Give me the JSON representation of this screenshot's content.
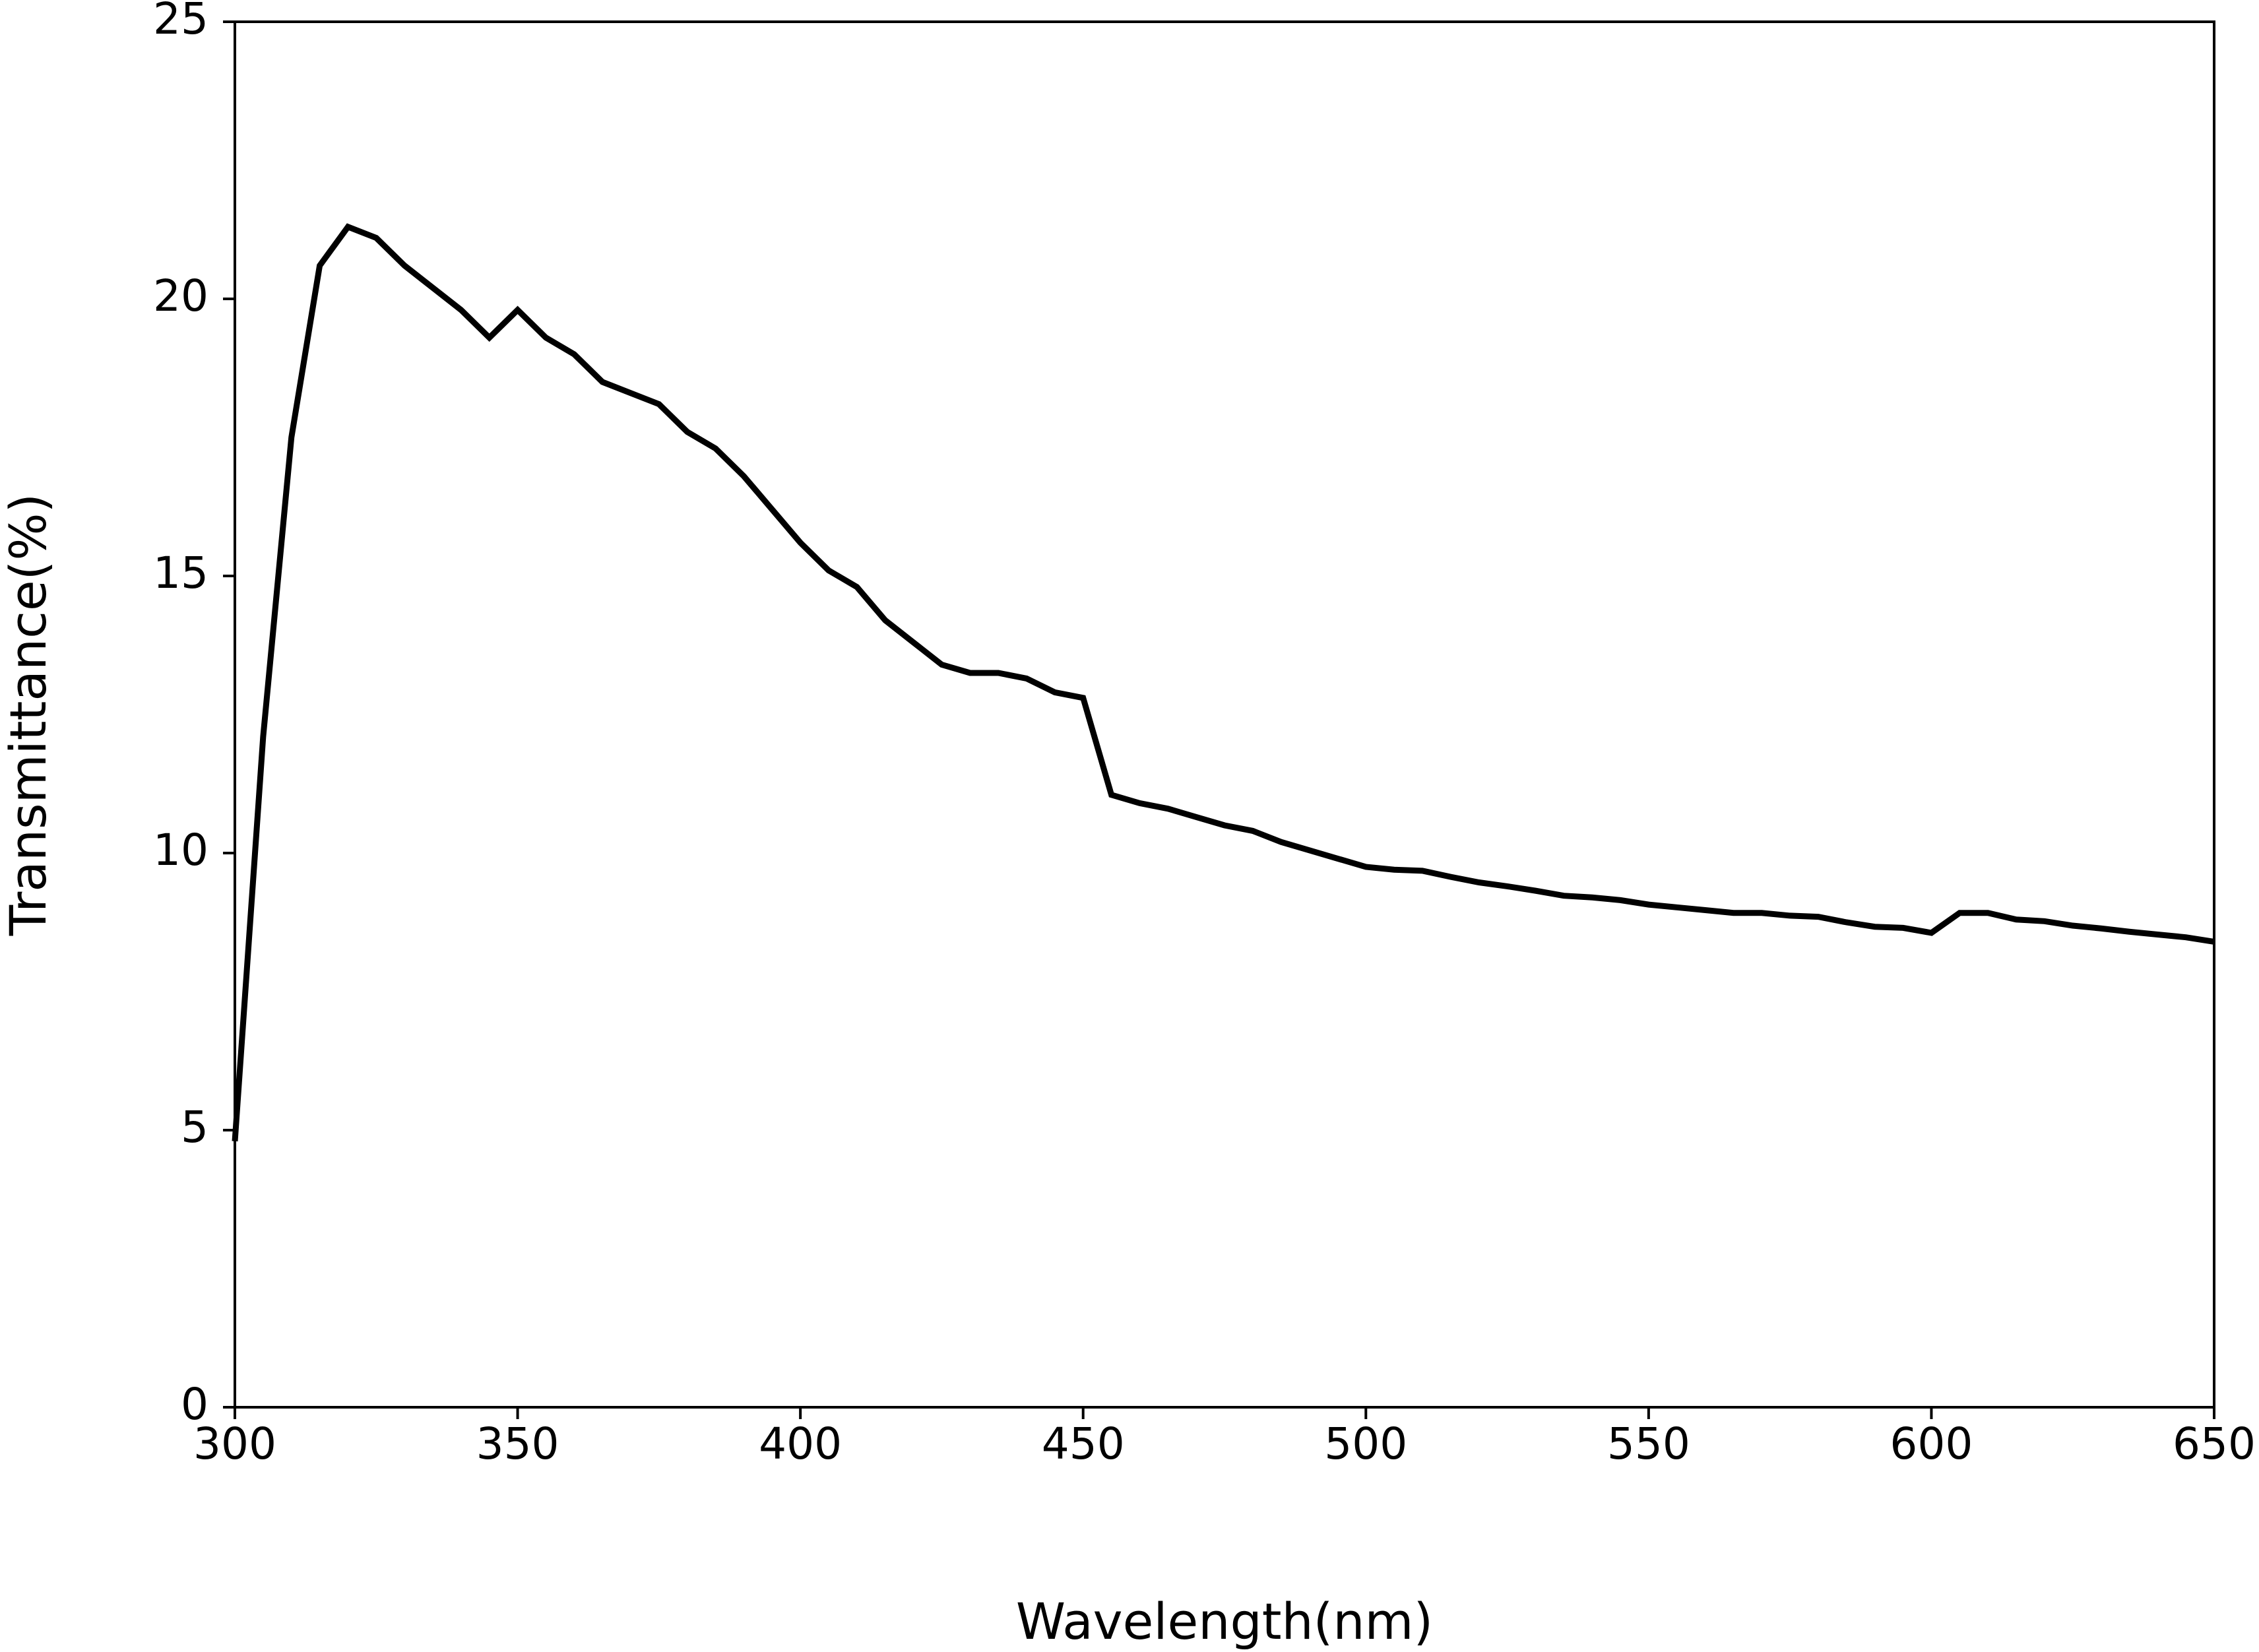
{
  "chart_data": {
    "type": "line",
    "x_label": "Wavelength(nm)",
    "y_label": "Transmittance(%)",
    "x": [
      300,
      305,
      310,
      315,
      320,
      325,
      330,
      335,
      340,
      345,
      350,
      355,
      360,
      365,
      370,
      375,
      380,
      385,
      390,
      395,
      400,
      405,
      410,
      415,
      420,
      425,
      430,
      435,
      440,
      445,
      450,
      455,
      460,
      465,
      470,
      475,
      480,
      485,
      490,
      495,
      500,
      505,
      510,
      515,
      520,
      525,
      530,
      535,
      540,
      545,
      550,
      555,
      560,
      565,
      570,
      575,
      580,
      585,
      590,
      595,
      600,
      605,
      610,
      615,
      620,
      625,
      630,
      635,
      640,
      645,
      650
    ],
    "series": [
      {
        "color": "#000000",
        "values": [
          4.8,
          12.1,
          17.5,
          20.6,
          21.3,
          21.1,
          20.6,
          20.2,
          19.8,
          19.3,
          19.8,
          19.3,
          19.0,
          18.5,
          18.3,
          18.1,
          17.6,
          17.3,
          16.8,
          16.2,
          15.6,
          15.1,
          14.8,
          14.2,
          13.8,
          13.4,
          13.25,
          13.25,
          13.15,
          12.9,
          12.8,
          11.05,
          10.9,
          10.8,
          10.65,
          10.5,
          10.4,
          10.2,
          10.05,
          9.9,
          9.75,
          9.7,
          9.68,
          9.57,
          9.47,
          9.4,
          9.32,
          9.23,
          9.2,
          9.15,
          9.07,
          9.02,
          8.97,
          8.92,
          8.92,
          8.87,
          8.85,
          8.75,
          8.67,
          8.65,
          8.56,
          8.92,
          8.92,
          8.8,
          8.77,
          8.69,
          8.64,
          8.58,
          8.53,
          8.48,
          8.4
        ]
      }
    ],
    "xlim": [
      300,
      650
    ],
    "xticks": [
      300,
      350,
      400,
      450,
      500,
      550,
      600,
      650
    ],
    "ylim": [
      0,
      25
    ],
    "yticks": [
      0,
      5,
      10,
      15,
      20,
      25
    ],
    "grid": false
  }
}
